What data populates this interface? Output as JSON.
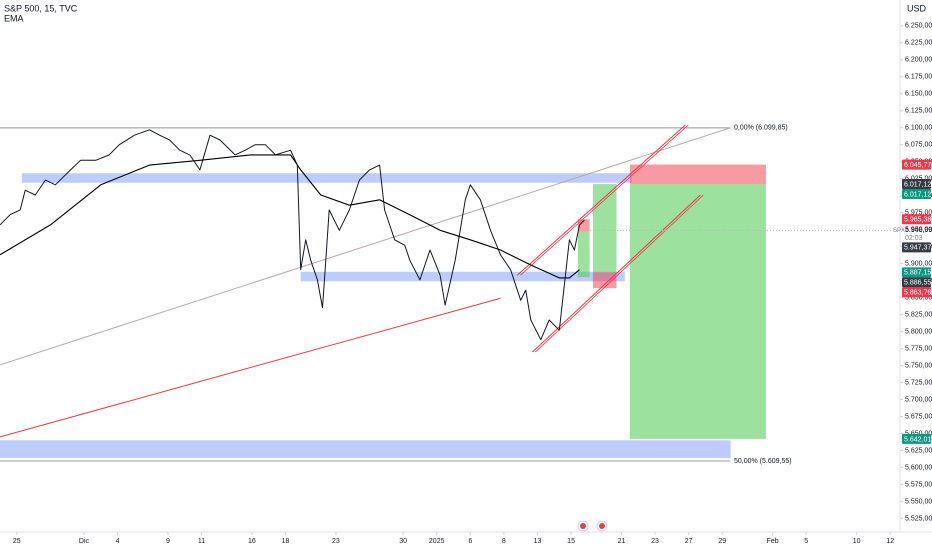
{
  "chart_data": {
    "type": "line",
    "title": "S&P 500, 15, TVC",
    "currency": "USD",
    "xlim": [
      -1,
      53
    ],
    "ylim": [
      5505,
      6288
    ],
    "xticks": [
      {
        "value": 0,
        "label": "25"
      },
      {
        "value": 4,
        "label": "Dic"
      },
      {
        "value": 6,
        "label": "4"
      },
      {
        "value": 9,
        "label": "9"
      },
      {
        "value": 11,
        "label": "11"
      },
      {
        "value": 14,
        "label": "16"
      },
      {
        "value": 16,
        "label": "18"
      },
      {
        "value": 19,
        "label": "23"
      },
      {
        "value": 23,
        "label": "30"
      },
      {
        "value": 25,
        "label": "2025"
      },
      {
        "value": 27,
        "label": "6"
      },
      {
        "value": 29,
        "label": "8"
      },
      {
        "value": 31,
        "label": "13"
      },
      {
        "value": 33,
        "label": "15"
      },
      {
        "value": 36,
        "label": "21"
      },
      {
        "value": 38,
        "label": "23"
      },
      {
        "value": 40,
        "label": "27"
      },
      {
        "value": 42,
        "label": "29"
      },
      {
        "value": 45,
        "label": "Feb"
      },
      {
        "value": 47,
        "label": "5"
      },
      {
        "value": 50,
        "label": "10"
      },
      {
        "value": 52,
        "label": "12"
      }
    ],
    "yticks": [
      {
        "value": 6250,
        "label": "6.250,00"
      },
      {
        "value": 6225,
        "label": "6.225,00"
      },
      {
        "value": 6200,
        "label": "6.200,00"
      },
      {
        "value": 6175,
        "label": "6.175,00"
      },
      {
        "value": 6150,
        "label": "6.150,00"
      },
      {
        "value": 6125,
        "label": "6.125,00"
      },
      {
        "value": 6100,
        "label": "6.100,00"
      },
      {
        "value": 6075,
        "label": "6.075,00"
      },
      {
        "value": 6050,
        "label": "6.050,00"
      },
      {
        "value": 6025,
        "label": "6.025,00"
      },
      {
        "value": 6000,
        "label": "6.000,00"
      },
      {
        "value": 5975,
        "label": "5.975,00"
      },
      {
        "value": 5950,
        "label": "5.950,00"
      },
      {
        "value": 5925,
        "label": "5.925,00"
      },
      {
        "value": 5900,
        "label": "5.900,00"
      },
      {
        "value": 5875,
        "label": "5.875,00"
      },
      {
        "value": 5850,
        "label": "5.850,00"
      },
      {
        "value": 5825,
        "label": "5.825,00"
      },
      {
        "value": 5800,
        "label": "5.800,00"
      },
      {
        "value": 5775,
        "label": "5.775,00"
      },
      {
        "value": 5750,
        "label": "5.750,00"
      },
      {
        "value": 5725,
        "label": "5.725,00"
      },
      {
        "value": 5700,
        "label": "5.700,00"
      },
      {
        "value": 5675,
        "label": "5.675,00"
      },
      {
        "value": 5650,
        "label": "5.650,00"
      },
      {
        "value": 5625,
        "label": "5.625,00"
      },
      {
        "value": 5600,
        "label": "5.600,00"
      },
      {
        "value": 5575,
        "label": "5.575,00"
      },
      {
        "value": 5550,
        "label": "5.550,00"
      },
      {
        "value": 5525,
        "label": "5.525,00"
      }
    ],
    "series": [
      {
        "color": "#131722",
        "x": [
          -1.0,
          -0.4,
          0.2,
          0.5,
          1.1,
          1.7,
          2.3,
          3.2,
          3.8,
          4.7,
          5.5,
          6.1,
          7.0,
          7.9,
          8.5,
          9.1,
          9.7,
          10.3,
          10.9,
          11.5,
          12.1,
          13.0,
          13.6,
          14.2,
          14.8,
          15.4,
          16.3,
          16.7,
          16.9,
          17.2,
          17.5,
          17.9,
          18.2,
          18.4,
          18.6,
          19.2,
          19.8,
          20.4,
          21.0,
          21.6,
          21.9,
          22.5,
          23.1,
          23.4,
          24.0,
          24.6,
          25.2,
          25.5,
          26.1,
          26.7,
          27.0,
          27.6,
          28.2,
          28.8,
          29.4,
          30.0,
          30.3,
          30.6,
          31.2,
          31.7,
          32.3,
          32.9,
          33.2,
          33.5,
          33.8
        ],
        "values": [
          5957,
          5972,
          5979,
          6008,
          6001,
          6023,
          6016,
          6038,
          6052,
          6052,
          6060,
          6075,
          6089,
          6097,
          6089,
          6082,
          6067,
          6060,
          6038,
          6089,
          6082,
          6060,
          6067,
          6075,
          6075,
          6060,
          6067,
          6045,
          5891,
          5935,
          5905,
          5876,
          5835,
          5905,
          5979,
          5949,
          5979,
          6023,
          6038,
          6045,
          5979,
          5935,
          5927,
          5905,
          5876,
          5920,
          5883,
          5839,
          5905,
          5994,
          6016,
          5994,
          5949,
          5913,
          5891,
          5846,
          5861,
          5817,
          5788,
          5817,
          5802,
          5935,
          5920,
          5957,
          5964
        ]
      },
      {
        "name": "EMA",
        "color": "#000000",
        "x": [
          -1.0,
          2.0,
          5.0,
          7.9,
          10.9,
          13.9,
          16.3,
          16.9,
          18.1,
          19.8,
          21.6,
          23.4,
          25.2,
          27.0,
          28.8,
          30.6,
          32.3,
          32.9,
          33.5
        ],
        "values": [
          5913,
          5957,
          6016,
          6045,
          6052,
          6060,
          6060,
          6038,
          6001,
          5986,
          5994,
          5972,
          5949,
          5935,
          5920,
          5898,
          5879,
          5879,
          5891
        ]
      }
    ],
    "zones": [
      {
        "x": [
          0.3,
          36.6
        ],
        "y": [
          6019,
          6033
        ],
        "color": "rgba(66,110,245,0.35)"
      },
      {
        "x": [
          16.9,
          36.2
        ],
        "y": [
          5874,
          5888
        ],
        "color": "rgba(66,110,245,0.35)"
      },
      {
        "x": [
          -1,
          42.5
        ],
        "y": [
          5614,
          5640
        ],
        "color": "rgba(66,110,245,0.35)"
      }
    ],
    "positions": [
      {
        "x": [
          36.5,
          44.6
        ],
        "entry": 6017.12,
        "stop": 6045.77,
        "target": 5642.01
      },
      {
        "x": [
          34.3,
          35.7
        ],
        "entry": 5887.15,
        "stop": 5863.76,
        "target": 6017.12
      },
      {
        "x": [
          33.4,
          34.1
        ],
        "entry": 5947.37,
        "stop": 5965.38,
        "target": 5880
      }
    ],
    "trend_lines": [
      {
        "x": [
          -1,
          28.8
        ],
        "y": [
          5645,
          5849
        ],
        "color": "#f23645"
      },
      {
        "x": [
          -1,
          42.5
        ],
        "y": [
          5751,
          6100
        ],
        "color": "#b8a8b0"
      },
      {
        "x": [
          29.8,
          39.8
        ],
        "y": [
          5883,
          6104
        ],
        "color": "#f23645"
      },
      {
        "x": [
          30.7,
          40.7
        ],
        "y": [
          5770,
          6001
        ],
        "color": "#f23645"
      }
    ],
    "fib_levels": [
      {
        "value": 6099.85,
        "label": "0,00% (6.099,85)",
        "color": "#9598a1"
      },
      {
        "value": 5609.55,
        "label": "50,00% (5.609,55)",
        "color": "#9598a1"
      }
    ],
    "price_tags": [
      {
        "value": 6045.77,
        "label": "6.045,77",
        "color": "#f23645"
      },
      {
        "value": 6017.12,
        "label": "6.017,12",
        "color": "#363a45"
      },
      {
        "value": 6017.12,
        "label": "6.017,12",
        "color": "#089981"
      },
      {
        "value": 5965.38,
        "label": "5.965,38",
        "color": "#f23645"
      },
      {
        "value": 5947.37,
        "label": "5.947,37",
        "color": "#363a45"
      },
      {
        "value": 5887.15,
        "label": "5.887,15",
        "color": "#089981"
      },
      {
        "value": 5886.55,
        "label": "5.886,55",
        "color": "#363a45"
      },
      {
        "value": 5863.76,
        "label": "5.863,76",
        "color": "#f23645"
      },
      {
        "value": 5642.01,
        "label": "5.642,01",
        "color": "#089981"
      }
    ],
    "last_price": {
      "symbol": "SPX",
      "value": 5948.99,
      "label": "5.948,99",
      "countdown": "02:03"
    }
  }
}
